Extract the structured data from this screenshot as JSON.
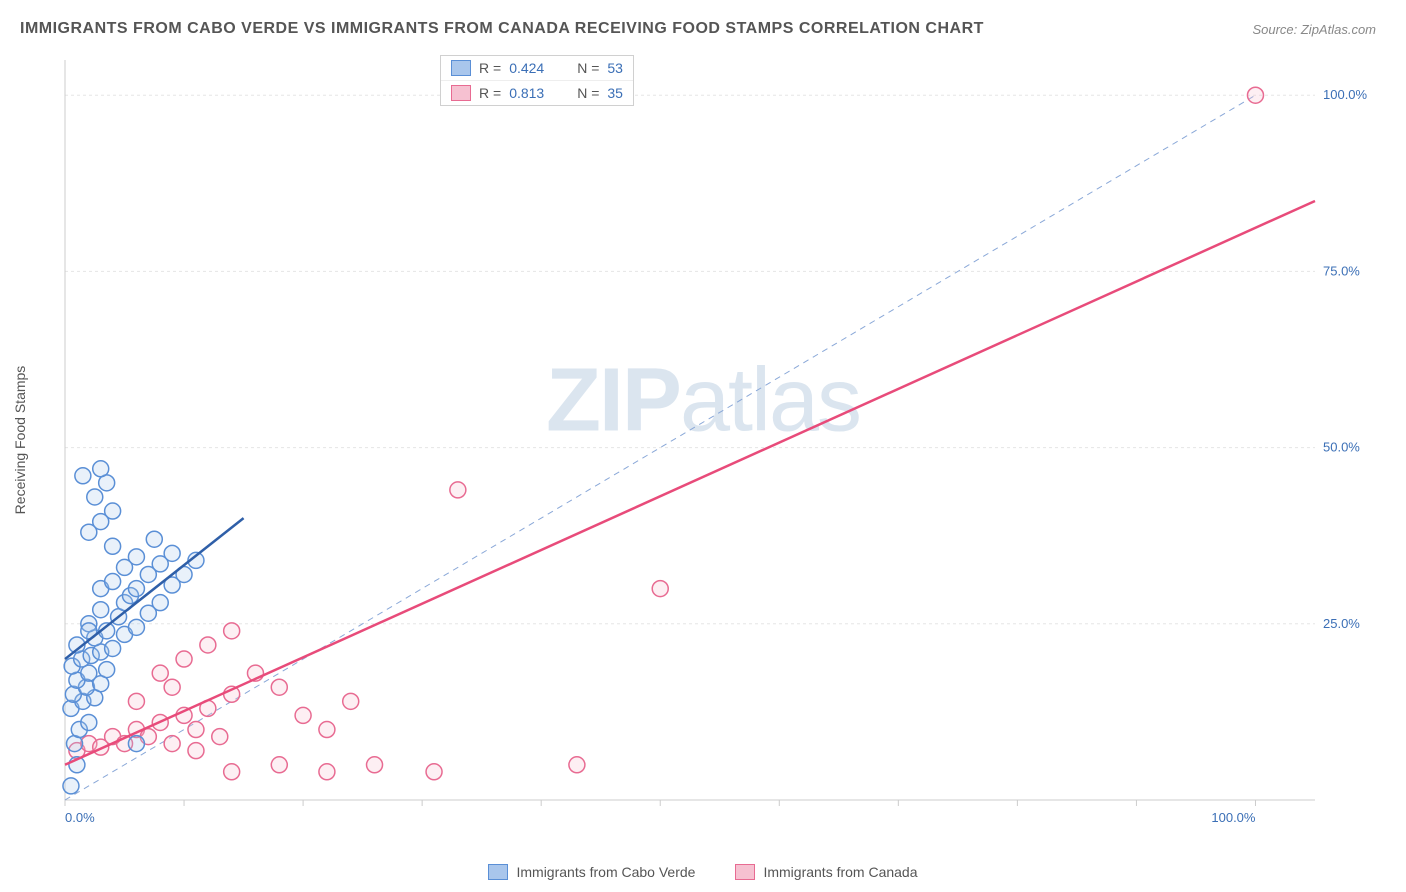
{
  "title": "IMMIGRANTS FROM CABO VERDE VS IMMIGRANTS FROM CANADA RECEIVING FOOD STAMPS CORRELATION CHART",
  "source": "Source: ZipAtlas.com",
  "ylabel": "Receiving Food Stamps",
  "watermark_zip": "ZIP",
  "watermark_atlas": "atlas",
  "chart": {
    "type": "scatter",
    "xlim": [
      0,
      105
    ],
    "ylim": [
      0,
      105
    ],
    "xtick_positions": [
      0,
      10,
      20,
      30,
      40,
      50,
      60,
      70,
      80,
      90,
      100
    ],
    "ytick_positions": [
      25,
      50,
      75,
      100
    ],
    "xtick_labels": {
      "0": "0.0%",
      "100": "100.0%"
    },
    "ytick_labels": {
      "25": "25.0%",
      "50": "50.0%",
      "75": "75.0%",
      "100": "100.0%"
    },
    "grid_color": "#e5e5e5",
    "axis_color": "#cccccc",
    "tick_label_color": "#3b6fb6",
    "tick_label_fontsize": 13,
    "background_color": "#ffffff",
    "marker_radius": 8,
    "marker_stroke_width": 1.5,
    "marker_fill_opacity": 0.25,
    "diagonal": {
      "color": "#8aa8d8",
      "dash": "6,5",
      "width": 1
    }
  },
  "series": [
    {
      "id": "cabo_verde",
      "label": "Immigrants from Cabo Verde",
      "color_stroke": "#5a8fd6",
      "color_fill": "#a9c6ec",
      "R": "0.424",
      "N": "53",
      "trend": {
        "x1": 0,
        "y1": 20,
        "x2": 15,
        "y2": 40,
        "color": "#2f5fa8",
        "width": 2.5
      },
      "points": [
        [
          0.5,
          2
        ],
        [
          1,
          5
        ],
        [
          0.8,
          8
        ],
        [
          1.2,
          10
        ],
        [
          2,
          11
        ],
        [
          0.5,
          13
        ],
        [
          1.5,
          14
        ],
        [
          2.5,
          14.5
        ],
        [
          0.7,
          15
        ],
        [
          1.8,
          16
        ],
        [
          3,
          16.5
        ],
        [
          1,
          17
        ],
        [
          2,
          18
        ],
        [
          3.5,
          18.5
        ],
        [
          0.6,
          19
        ],
        [
          1.4,
          20
        ],
        [
          2.2,
          20.5
        ],
        [
          3,
          21
        ],
        [
          4,
          21.5
        ],
        [
          1,
          22
        ],
        [
          2.5,
          23
        ],
        [
          5,
          23.5
        ],
        [
          3.5,
          24
        ],
        [
          6,
          24.5
        ],
        [
          2,
          25
        ],
        [
          4.5,
          26
        ],
        [
          7,
          26.5
        ],
        [
          3,
          27
        ],
        [
          5,
          28
        ],
        [
          8,
          28
        ],
        [
          5.5,
          29
        ],
        [
          3,
          30
        ],
        [
          6,
          30
        ],
        [
          9,
          30.5
        ],
        [
          4,
          31
        ],
        [
          7,
          32
        ],
        [
          10,
          32
        ],
        [
          5,
          33
        ],
        [
          8,
          33.5
        ],
        [
          11,
          34
        ],
        [
          6,
          34.5
        ],
        [
          9,
          35
        ],
        [
          4,
          36
        ],
        [
          7.5,
          37
        ],
        [
          2,
          38
        ],
        [
          3,
          39.5
        ],
        [
          4,
          41
        ],
        [
          2.5,
          43
        ],
        [
          3.5,
          45
        ],
        [
          1.5,
          46
        ],
        [
          3,
          47
        ],
        [
          2,
          24
        ],
        [
          6,
          8
        ]
      ]
    },
    {
      "id": "canada",
      "label": "Immigrants from Canada",
      "color_stroke": "#e86b92",
      "color_fill": "#f6c1d1",
      "R": "0.813",
      "N": "35",
      "trend": {
        "x1": 0,
        "y1": 5,
        "x2": 105,
        "y2": 85,
        "color": "#e84b7a",
        "width": 2.5
      },
      "points": [
        [
          1,
          7
        ],
        [
          2,
          8
        ],
        [
          3,
          7.5
        ],
        [
          4,
          9
        ],
        [
          5,
          8
        ],
        [
          6,
          10
        ],
        [
          7,
          9
        ],
        [
          8,
          11
        ],
        [
          9,
          8
        ],
        [
          10,
          12
        ],
        [
          11,
          10
        ],
        [
          12,
          13
        ],
        [
          13,
          9
        ],
        [
          14,
          15
        ],
        [
          8,
          18
        ],
        [
          10,
          20
        ],
        [
          12,
          22
        ],
        [
          14,
          24
        ],
        [
          16,
          18
        ],
        [
          18,
          16
        ],
        [
          20,
          12
        ],
        [
          22,
          10
        ],
        [
          24,
          14
        ],
        [
          14,
          4
        ],
        [
          18,
          5
        ],
        [
          22,
          4
        ],
        [
          26,
          5
        ],
        [
          31,
          4
        ],
        [
          33,
          44
        ],
        [
          43,
          5
        ],
        [
          50,
          30
        ],
        [
          100,
          100
        ],
        [
          6,
          14
        ],
        [
          9,
          16
        ],
        [
          11,
          7
        ]
      ]
    }
  ],
  "legend_top": {
    "r_label": "R =",
    "n_label": "N ="
  }
}
